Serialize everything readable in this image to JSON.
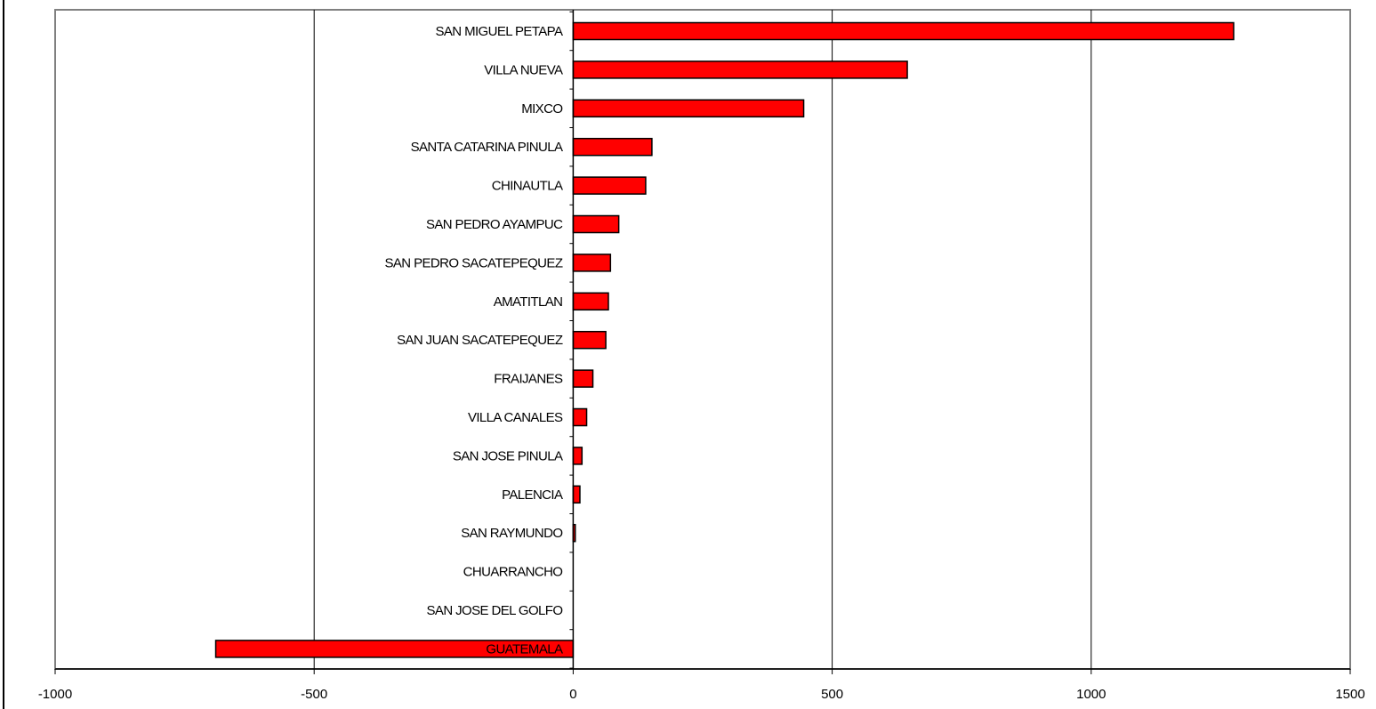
{
  "chart_data": {
    "type": "bar",
    "orientation": "horizontal",
    "categories": [
      "SAN MIGUEL PETAPA",
      "VILLA NUEVA",
      "MIXCO",
      "SANTA CATARINA PINULA",
      "CHINAUTLA",
      "SAN PEDRO AYAMPUC",
      "SAN PEDRO SACATEPEQUEZ",
      "AMATITLAN",
      "SAN JUAN SACATEPEQUEZ",
      "FRAIJANES",
      "VILLA CANALES",
      "SAN JOSE PINULA",
      "PALENCIA",
      "SAN RAYMUNDO",
      "CHUARRANCHO",
      "SAN JOSE DEL GOLFO",
      "GUATEMALA"
    ],
    "values": [
      1275,
      645,
      445,
      152,
      140,
      88,
      72,
      68,
      63,
      38,
      26,
      17,
      13,
      4,
      0,
      0,
      -690
    ],
    "xlim": [
      -1000,
      1500
    ],
    "xticks": [
      "-1000",
      "-500",
      "0",
      "500",
      "1000",
      "1500"
    ],
    "title": "",
    "xlabel": "",
    "ylabel": "",
    "grid": "vertical",
    "legend": "none",
    "bar_color": "#ff0000",
    "bar_edge_color": "#000000",
    "grid_color": "#000000",
    "frame_color": "#808080"
  }
}
